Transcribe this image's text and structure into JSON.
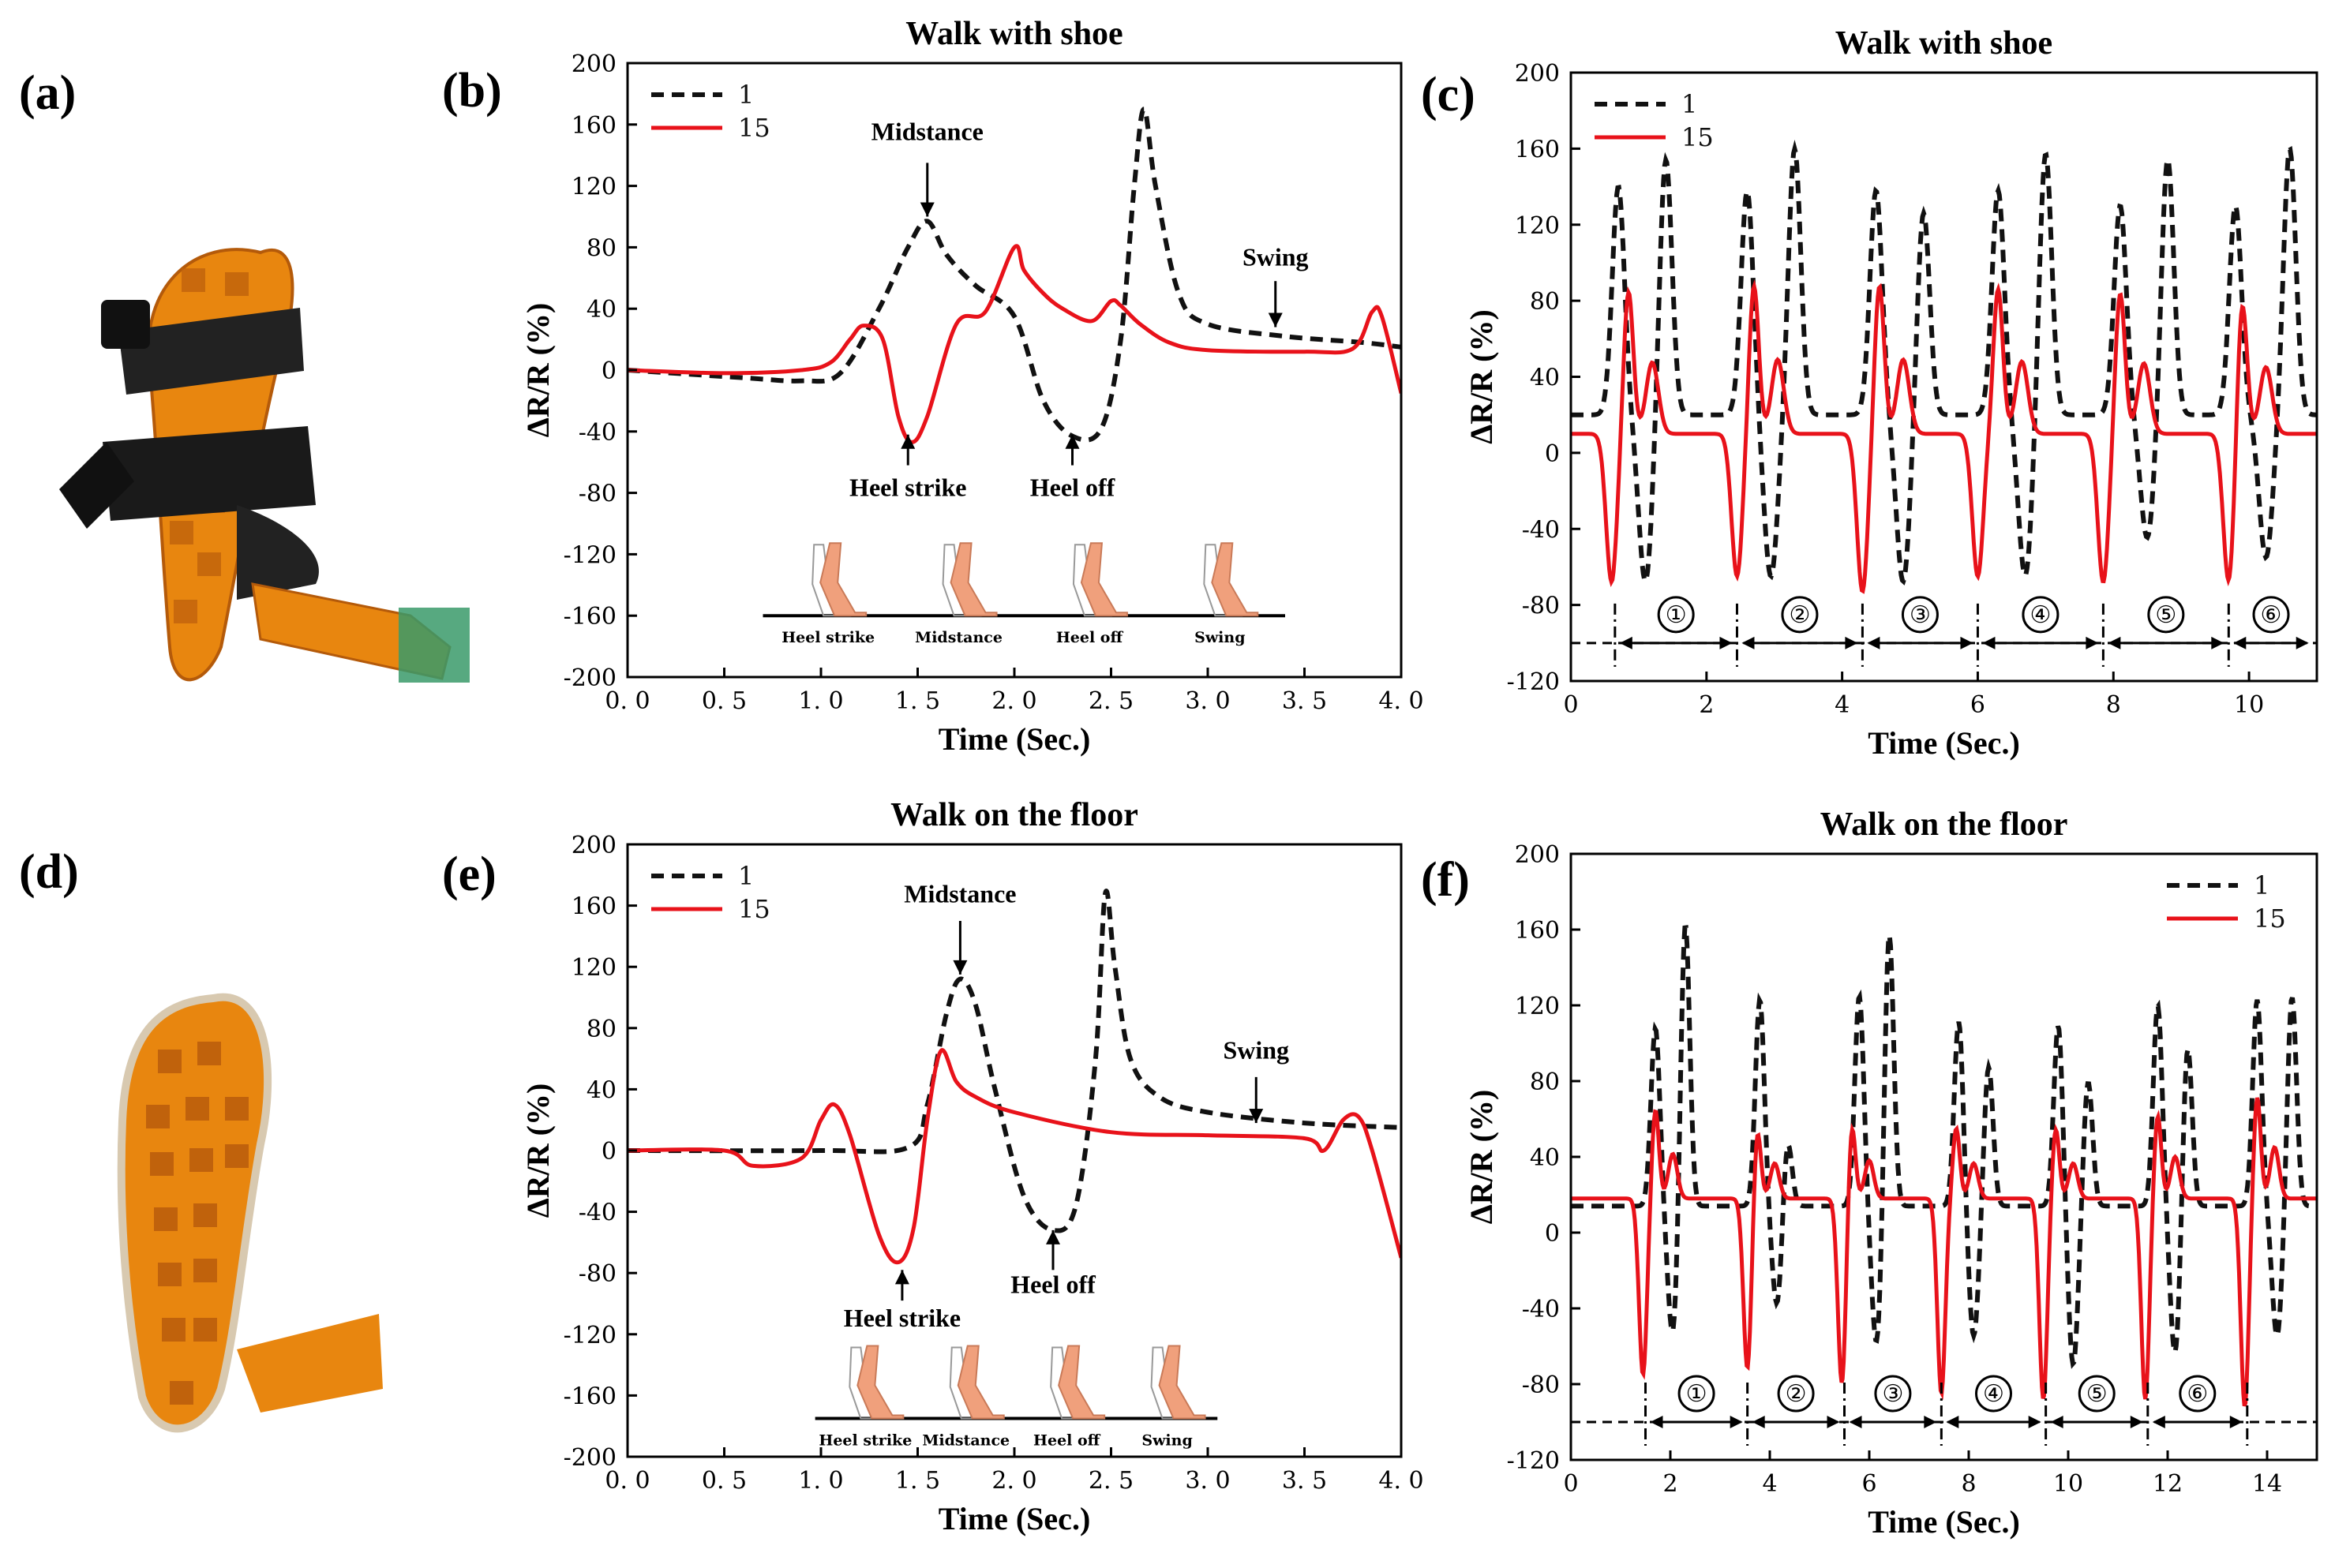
{
  "photos": {
    "a": {
      "label": "(a)",
      "description": "sandal"
    },
    "d": {
      "label": "(d)",
      "description": "insole"
    }
  },
  "colors": {
    "s1": "#111111",
    "s15": "#e8121a",
    "skin": "#f0a07c",
    "pcb": "#e8860f",
    "pcbDark": "#b45a0a",
    "strap": "#222222"
  },
  "chart_data": [
    {
      "id": "b",
      "panel_label": "(b)",
      "type": "line",
      "title": "Walk with shoe",
      "xlabel": "Time (Sec.)",
      "ylabel": "ΔR/R (%)",
      "xlim": [
        0,
        4
      ],
      "ylim": [
        -200,
        200
      ],
      "xticks": [
        0,
        0.5,
        1,
        1.5,
        2,
        2.5,
        3,
        3.5,
        4
      ],
      "xtick_labels": [
        "0. 0",
        "0. 5",
        "1. 0",
        "1. 5",
        "2. 0",
        "2. 5",
        "3. 0",
        "3. 5",
        "4. 0"
      ],
      "yticks": [
        -200,
        -160,
        -120,
        -80,
        -40,
        0,
        40,
        80,
        120,
        160,
        200
      ],
      "legend": {
        "position": "top-left",
        "entries": [
          "1",
          "15"
        ]
      },
      "series": [
        {
          "name": "1",
          "style": "dashed",
          "color": "#111111",
          "x": [
            0,
            0.6,
            0.9,
            1.1,
            1.3,
            1.45,
            1.55,
            1.65,
            1.8,
            2.0,
            2.15,
            2.3,
            2.45,
            2.55,
            2.62,
            2.67,
            2.73,
            2.85,
            3.0,
            3.4,
            3.8,
            4.0
          ],
          "y": [
            0,
            -5,
            -7,
            -2,
            40,
            80,
            97,
            75,
            55,
            35,
            -20,
            -43,
            -38,
            20,
            120,
            170,
            120,
            50,
            30,
            22,
            18,
            15
          ]
        },
        {
          "name": "15",
          "style": "solid",
          "color": "#e8121a",
          "x": [
            0,
            0.5,
            0.9,
            1.05,
            1.15,
            1.22,
            1.32,
            1.4,
            1.47,
            1.55,
            1.7,
            1.85,
            2.0,
            2.05,
            2.15,
            2.25,
            2.4,
            2.5,
            2.55,
            2.65,
            2.8,
            3.0,
            3.5,
            3.75,
            3.85,
            3.9,
            4.0
          ],
          "y": [
            0,
            -2,
            0,
            5,
            20,
            29,
            20,
            -30,
            -47,
            -30,
            30,
            38,
            80,
            65,
            50,
            40,
            32,
            45,
            42,
            30,
            18,
            13,
            12,
            14,
            38,
            35,
            -15
          ]
        }
      ],
      "annotations": [
        "Midstance",
        "Heel strike",
        "Heel off",
        "Swing"
      ],
      "inset_phases": [
        "Heel strike",
        "Midstance",
        "Heel off",
        "Swing"
      ]
    },
    {
      "id": "c",
      "panel_label": "(c)",
      "type": "line",
      "title": "Walk with shoe",
      "xlabel": "Time (Sec.)",
      "ylabel": "ΔR/R (%)",
      "xlim": [
        0,
        11
      ],
      "ylim": [
        -120,
        200
      ],
      "xticks": [
        0,
        2,
        4,
        6,
        8,
        10
      ],
      "xtick_labels": [
        "0",
        "2",
        "4",
        "6",
        "8",
        "10"
      ],
      "yticks": [
        -120,
        -80,
        -40,
        0,
        40,
        80,
        120,
        160,
        200
      ],
      "legend": {
        "position": "top-left",
        "entries": [
          "1",
          "15"
        ]
      },
      "cycle_markers": [
        "①",
        "②",
        "③",
        "④",
        "⑤",
        "⑥"
      ],
      "cycle_boundaries": [
        0.65,
        2.45,
        4.3,
        6.0,
        7.85,
        9.7
      ],
      "series": [
        {
          "name": "1",
          "style": "dashed",
          "color": "#111111",
          "peaks": [
            [
              0.7,
              140,
              1.4,
              155
            ],
            [
              2.6,
              138,
              3.3,
              160
            ],
            [
              4.5,
              138,
              5.2,
              127
            ],
            [
              6.3,
              138,
              7.0,
              158
            ],
            [
              8.1,
              130,
              8.8,
              155
            ],
            [
              9.8,
              130,
              10.6,
              160
            ]
          ],
          "valleys": [
            [
              1.1,
              -68
            ],
            [
              2.95,
              -65
            ],
            [
              4.9,
              -68
            ],
            [
              6.7,
              -65
            ],
            [
              8.5,
              -45
            ],
            [
              10.25,
              -55
            ]
          ],
          "baseline": 20
        },
        {
          "name": "15",
          "style": "solid",
          "color": "#e8121a",
          "dips": [
            [
              0.6,
              -68
            ],
            [
              2.45,
              -65
            ],
            [
              4.3,
              -73
            ],
            [
              6.0,
              -65
            ],
            [
              7.85,
              -68
            ],
            [
              9.7,
              -68
            ]
          ],
          "peaks": [
            [
              0.85,
              85
            ],
            [
              2.7,
              88
            ],
            [
              4.55,
              88
            ],
            [
              6.3,
              86
            ],
            [
              8.1,
              84
            ],
            [
              9.9,
              80
            ]
          ],
          "baseline": 10
        }
      ]
    },
    {
      "id": "e",
      "panel_label": "(e)",
      "type": "line",
      "title": "Walk on the floor",
      "xlabel": "Time (Sec.)",
      "ylabel": "ΔR/R (%)",
      "xlim": [
        0,
        4
      ],
      "ylim": [
        -200,
        200
      ],
      "xticks": [
        0,
        0.5,
        1,
        1.5,
        2,
        2.5,
        3,
        3.5,
        4
      ],
      "xtick_labels": [
        "0. 0",
        "0. 5",
        "1. 0",
        "1. 5",
        "2. 0",
        "2. 5",
        "3. 0",
        "3. 5",
        "4. 0"
      ],
      "yticks": [
        -200,
        -160,
        -120,
        -80,
        -40,
        0,
        40,
        80,
        120,
        160,
        200
      ],
      "legend": {
        "position": "top-left",
        "entries": [
          "1",
          "15"
        ]
      },
      "series": [
        {
          "name": "1",
          "style": "dashed",
          "color": "#111111",
          "x": [
            0,
            1.0,
            1.45,
            1.55,
            1.65,
            1.72,
            1.8,
            1.9,
            2.05,
            2.2,
            2.32,
            2.42,
            2.47,
            2.52,
            2.6,
            2.75,
            3.0,
            3.5,
            4.0
          ],
          "y": [
            0,
            0,
            2,
            30,
            90,
            112,
            95,
            40,
            -30,
            -52,
            -35,
            60,
            168,
            120,
            60,
            35,
            25,
            18,
            15
          ]
        },
        {
          "name": "15",
          "style": "solid",
          "color": "#e8121a",
          "x": [
            0,
            0.5,
            0.65,
            0.9,
            1.0,
            1.07,
            1.15,
            1.3,
            1.4,
            1.48,
            1.55,
            1.62,
            1.7,
            1.8,
            2.0,
            2.5,
            3.0,
            3.5,
            3.6,
            3.7,
            3.78,
            3.85,
            4.0
          ],
          "y": [
            0,
            0,
            -10,
            -5,
            20,
            30,
            10,
            -55,
            -73,
            -50,
            20,
            65,
            45,
            35,
            25,
            12,
            10,
            8,
            0,
            20,
            22,
            0,
            -70
          ]
        }
      ],
      "annotations": [
        "Midstance",
        "Heel strike",
        "Heel off",
        "Swing"
      ],
      "inset_phases": [
        "Heel strike",
        "Midstance",
        "Heel off",
        "Swing"
      ]
    },
    {
      "id": "f",
      "panel_label": "(f)",
      "type": "line",
      "title": "Walk on the floor",
      "xlabel": "Time (Sec.)",
      "ylabel": "ΔR/R (%)",
      "xlim": [
        0,
        15
      ],
      "ylim": [
        -120,
        200
      ],
      "xticks": [
        0,
        2,
        4,
        6,
        8,
        10,
        12,
        14
      ],
      "xtick_labels": [
        "0",
        "2",
        "4",
        "6",
        "8",
        "10",
        "12",
        "14"
      ],
      "yticks": [
        -120,
        -80,
        -40,
        0,
        40,
        80,
        120,
        160,
        200
      ],
      "legend": {
        "position": "top-right",
        "entries": [
          "1",
          "15"
        ]
      },
      "cycle_markers": [
        "①",
        "②",
        "③",
        "④",
        "⑤",
        "⑥"
      ],
      "cycle_boundaries": [
        1.5,
        3.55,
        5.5,
        7.45,
        9.55,
        11.6,
        13.6
      ],
      "series": [
        {
          "name": "1",
          "style": "dashed",
          "color": "#111111",
          "peaks": [
            [
              1.7,
              108,
              2.3,
              165
            ],
            [
              3.8,
              123,
              4.35,
              52
            ],
            [
              5.8,
              125,
              6.4,
              160
            ],
            [
              7.8,
              112,
              8.4,
              88
            ],
            [
              9.8,
              110,
              10.4,
              80
            ],
            [
              11.8,
              120,
              12.4,
              100
            ],
            [
              13.8,
              123,
              14.5,
              125
            ]
          ],
          "valleys": [
            [
              2.05,
              -55
            ],
            [
              4.15,
              -40
            ],
            [
              6.15,
              -60
            ],
            [
              8.1,
              -55
            ],
            [
              10.1,
              -70
            ],
            [
              12.15,
              -65
            ],
            [
              14.2,
              -55
            ]
          ],
          "baseline": 14
        },
        {
          "name": "15",
          "style": "solid",
          "color": "#e8121a",
          "dips": [
            [
              1.45,
              -75
            ],
            [
              3.55,
              -72
            ],
            [
              5.45,
              -80
            ],
            [
              7.45,
              -85
            ],
            [
              9.5,
              -88
            ],
            [
              11.55,
              -88
            ],
            [
              13.55,
              -92
            ]
          ],
          "peaks": [
            [
              1.7,
              65
            ],
            [
              3.75,
              55
            ],
            [
              5.65,
              58
            ],
            [
              7.75,
              55
            ],
            [
              9.75,
              55
            ],
            [
              11.8,
              62
            ],
            [
              13.8,
              72
            ]
          ],
          "baseline": 18
        }
      ]
    }
  ]
}
